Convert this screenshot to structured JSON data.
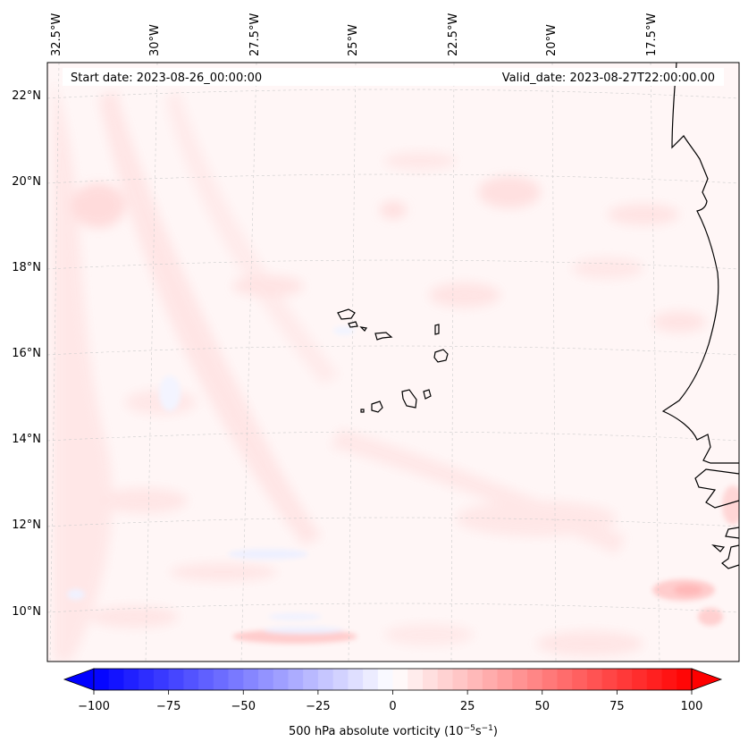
{
  "map": {
    "start_date_label": "Start date: 2023-08-26_00:00:00",
    "valid_date_label": "Valid_date: 2023-08-27T22:00:00.00",
    "longitude_labels": [
      "32.5°W",
      "30°W",
      "27.5°W",
      "25°W",
      "22.5°W",
      "20°W",
      "17.5°W"
    ],
    "latitude_labels": [
      "22°N",
      "20°N",
      "18°N",
      "16°N",
      "14°N",
      "12°N",
      "10°N"
    ],
    "variable": "500 hPa absolute vorticity"
  },
  "colorbar": {
    "tick_labels": [
      "−100",
      "−75",
      "−50",
      "−25",
      "0",
      "25",
      "50",
      "75",
      "100"
    ],
    "min": -100,
    "max": 100,
    "label_prefix": "500 hPa absolute vorticity (10",
    "unit_exp1": "−5",
    "unit_mid": "s",
    "unit_exp2": "−1",
    "label_suffix": ")",
    "colors": {
      "negative": "#0000ff",
      "zero": "#ffffff",
      "positive": "#ff0000"
    }
  }
}
